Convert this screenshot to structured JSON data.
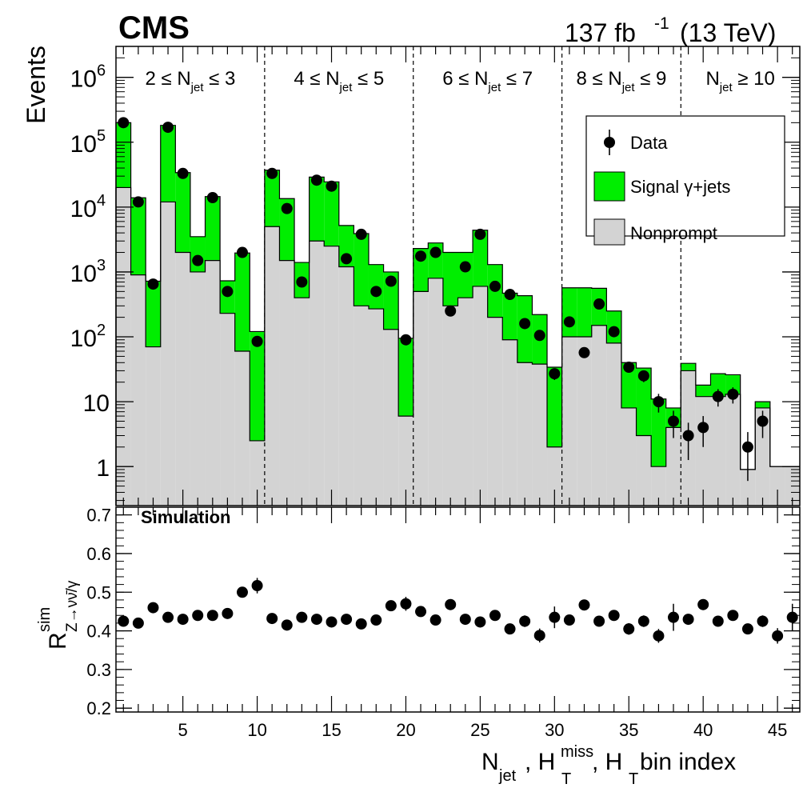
{
  "header": {
    "experiment": "CMS",
    "lumi_value": "137 fb",
    "lumi_exp": "-1",
    "energy": "(13 TeV)"
  },
  "colors": {
    "signal": "#00ee00",
    "nonprompt": "#d3d3d3",
    "data": "#000000"
  },
  "chart_data": [
    {
      "type": "bar",
      "stacked": true,
      "yscale": "log",
      "xlim": [
        0.5,
        46.5
      ],
      "ylim": [
        0.25,
        3000000
      ],
      "ylabel": "Events",
      "yticks": [
        {
          "v": 1,
          "label": "1"
        },
        {
          "v": 10,
          "label": "10"
        },
        {
          "v": 100,
          "label": "10",
          "sup": "2"
        },
        {
          "v": 1000,
          "label": "10",
          "sup": "3"
        },
        {
          "v": 10000,
          "label": "10",
          "sup": "4"
        },
        {
          "v": 100000,
          "label": "10",
          "sup": "5"
        },
        {
          "v": 1000000,
          "label": "10",
          "sup": "6"
        }
      ],
      "region_boundaries": [
        10.5,
        20.5,
        30.5,
        38.5
      ],
      "regions": [
        {
          "x": 5.5,
          "pre": "2 ≤ N",
          "sub": "jet",
          "post": " ≤ 3"
        },
        {
          "x": 15.5,
          "pre": "4 ≤ N",
          "sub": "jet",
          "post": " ≤ 5"
        },
        {
          "x": 25.5,
          "pre": "6 ≤ N",
          "sub": "jet",
          "post": " ≤ 7"
        },
        {
          "x": 34.5,
          "pre": "8 ≤ N",
          "sub": "jet",
          "post": " ≤ 9"
        },
        {
          "x": 42.5,
          "pre": "N",
          "sub": "jet",
          "post": " ≥ 10"
        }
      ],
      "legend": {
        "position": "top-right",
        "data_label": "Data",
        "signal_label": "Signal γ+jets",
        "nonprompt_label": "Nonprompt"
      },
      "bins": [
        1,
        2,
        3,
        4,
        5,
        6,
        7,
        8,
        9,
        10,
        11,
        12,
        13,
        14,
        15,
        16,
        17,
        18,
        19,
        20,
        21,
        22,
        23,
        24,
        25,
        26,
        27,
        28,
        29,
        30,
        31,
        32,
        33,
        34,
        35,
        36,
        37,
        38,
        39,
        40,
        41,
        42,
        43,
        44,
        45,
        46
      ],
      "series": [
        {
          "name": "Nonprompt",
          "values": [
            20000,
            900,
            70,
            12000,
            2000,
            1000,
            1500,
            230,
            60,
            2.5,
            5000,
            1500,
            400,
            3000,
            2500,
            1200,
            300,
            270,
            130,
            6,
            500,
            800,
            300,
            400,
            600,
            200,
            90,
            40,
            38,
            2,
            100,
            100,
            150,
            80,
            8,
            3,
            1,
            4,
            30,
            12,
            12,
            13,
            0.9,
            8,
            1,
            1
          ]
        },
        {
          "name": "Signal γ+jets",
          "values": [
            180000,
            13000,
            650,
            170000,
            32000,
            2500,
            13000,
            500,
            1900,
            118,
            32000,
            12000,
            1000,
            26000,
            22000,
            4000,
            3600,
            1030,
            870,
            89,
            1800,
            2000,
            1700,
            1600,
            3800,
            1100,
            380,
            390,
            182,
            32,
            470,
            470,
            410,
            170,
            32,
            30,
            10,
            4,
            9,
            6,
            15,
            13,
            0,
            2,
            0,
            0
          ]
        }
      ],
      "data": {
        "name": "Data",
        "x": [
          1,
          2,
          3,
          4,
          5,
          6,
          7,
          8,
          9,
          10,
          11,
          12,
          13,
          14,
          15,
          16,
          17,
          18,
          19,
          20,
          21,
          22,
          23,
          24,
          25,
          26,
          27,
          28,
          29,
          30,
          31,
          32,
          33,
          34,
          35,
          36,
          37,
          38,
          39,
          40,
          41,
          42,
          43,
          44
        ],
        "y": [
          200000,
          12000,
          650,
          170000,
          33000,
          1500,
          14000,
          500,
          2000,
          85,
          33000,
          9500,
          700,
          26000,
          21000,
          1600,
          3800,
          500,
          720,
          90,
          1750,
          2000,
          250,
          1200,
          3800,
          600,
          450,
          160,
          105,
          27,
          170,
          57,
          320,
          120,
          34,
          25,
          10,
          5,
          3,
          4,
          12,
          13,
          2,
          5
        ],
        "yerr_rel": [
          0.005,
          0.01,
          0.04,
          0.005,
          0.01,
          0.03,
          0.01,
          0.05,
          0.03,
          0.1,
          0.01,
          0.01,
          0.04,
          0.01,
          0.01,
          0.03,
          0.02,
          0.05,
          0.04,
          0.1,
          0.03,
          0.03,
          0.06,
          0.03,
          0.02,
          0.04,
          0.05,
          0.08,
          0.1,
          0.2,
          0.08,
          0.13,
          0.06,
          0.09,
          0.17,
          0.2,
          0.32,
          0.45,
          0.58,
          0.5,
          0.3,
          0.28,
          0.7,
          0.45
        ]
      }
    },
    {
      "type": "scatter",
      "annotation": "Simulation",
      "xlabel_parts": [
        "N",
        "jet",
        ", H",
        "T",
        "miss",
        ", H",
        "T",
        " bin index"
      ],
      "ylabel_parts": [
        "R",
        "sim",
        "Z→νν̄/γ"
      ],
      "xlim": [
        0.5,
        46.5
      ],
      "ylim": [
        0.19,
        0.72
      ],
      "yticks": [
        0.2,
        0.3,
        0.4,
        0.5,
        0.6,
        0.7
      ],
      "xticks": [
        5,
        10,
        15,
        20,
        25,
        30,
        35,
        40,
        45
      ],
      "x": [
        1,
        2,
        3,
        4,
        5,
        6,
        7,
        8,
        9,
        10,
        11,
        12,
        13,
        14,
        15,
        16,
        17,
        18,
        19,
        20,
        21,
        22,
        23,
        24,
        25,
        26,
        27,
        28,
        29,
        30,
        31,
        32,
        33,
        34,
        35,
        36,
        37,
        38,
        39,
        40,
        41,
        42,
        43,
        44,
        45,
        46
      ],
      "y": [
        0.425,
        0.42,
        0.46,
        0.435,
        0.43,
        0.44,
        0.44,
        0.445,
        0.5,
        0.517,
        0.432,
        0.415,
        0.435,
        0.43,
        0.423,
        0.43,
        0.418,
        0.428,
        0.465,
        0.47,
        0.45,
        0.428,
        0.468,
        0.43,
        0.423,
        0.44,
        0.405,
        0.425,
        0.388,
        0.435,
        0.428,
        0.467,
        0.425,
        0.44,
        0.405,
        0.425,
        0.387,
        0.435,
        0.43,
        0.468,
        0.425,
        0.44,
        0.405,
        0.425,
        0.387,
        0.435
      ],
      "yerr": [
        0.008,
        0.008,
        0.008,
        0.008,
        0.008,
        0.008,
        0.008,
        0.008,
        0.012,
        0.02,
        0.01,
        0.01,
        0.01,
        0.01,
        0.01,
        0.01,
        0.01,
        0.01,
        0.012,
        0.018,
        0.01,
        0.01,
        0.01,
        0.01,
        0.01,
        0.01,
        0.01,
        0.015,
        0.018,
        0.028,
        0.012,
        0.012,
        0.012,
        0.012,
        0.015,
        0.015,
        0.018,
        0.035,
        0.012,
        0.012,
        0.012,
        0.012,
        0.012,
        0.015,
        0.02,
        0.035
      ]
    }
  ]
}
